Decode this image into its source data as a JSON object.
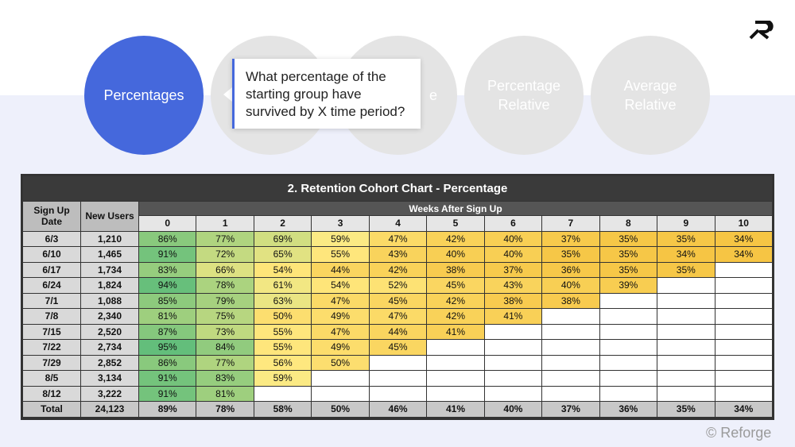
{
  "steps": [
    {
      "label": "Percentages",
      "active": true
    },
    {
      "label": "",
      "active": false
    },
    {
      "label": "e",
      "active": false
    },
    {
      "label": "Percentage\nRelative",
      "active": false
    },
    {
      "label": "Average\nRelative",
      "active": false
    }
  ],
  "tooltip": "What percentage of the\nstarting group have\nsurvived by X time period?",
  "watermark": "© Reforge",
  "colors": {
    "accent": "#4568dc",
    "green": "#63be7b",
    "yellow": "#ffeb84",
    "orange": "#f6c544"
  },
  "chart_data": {
    "type": "table",
    "title": "2. Retention Cohort Chart - Percentage",
    "row_header_label": "Sign Up Date",
    "users_header_label": "New Users",
    "weeks_header_label": "Weeks After Sign Up",
    "weeks": [
      "0",
      "1",
      "2",
      "3",
      "4",
      "5",
      "6",
      "7",
      "8",
      "9",
      "10"
    ],
    "rows": [
      {
        "date": "6/3",
        "users": "1,210",
        "values": [
          86,
          77,
          69,
          59,
          47,
          42,
          40,
          37,
          35,
          35,
          34
        ]
      },
      {
        "date": "6/10",
        "users": "1,465",
        "values": [
          91,
          72,
          65,
          55,
          43,
          40,
          40,
          35,
          35,
          34,
          34
        ]
      },
      {
        "date": "6/17",
        "users": "1,734",
        "values": [
          83,
          66,
          54,
          44,
          42,
          38,
          37,
          36,
          35,
          35
        ]
      },
      {
        "date": "6/24",
        "users": "1,824",
        "values": [
          94,
          78,
          61,
          54,
          52,
          45,
          43,
          40,
          39
        ]
      },
      {
        "date": "7/1",
        "users": "1,088",
        "values": [
          85,
          79,
          63,
          47,
          45,
          42,
          38,
          38
        ]
      },
      {
        "date": "7/8",
        "users": "2,340",
        "values": [
          81,
          75,
          50,
          49,
          47,
          42,
          41
        ]
      },
      {
        "date": "7/15",
        "users": "2,520",
        "values": [
          87,
          73,
          55,
          47,
          44,
          41
        ]
      },
      {
        "date": "7/22",
        "users": "2,734",
        "values": [
          95,
          84,
          55,
          49,
          45
        ]
      },
      {
        "date": "7/29",
        "users": "2,852",
        "values": [
          86,
          77,
          56,
          50
        ]
      },
      {
        "date": "8/5",
        "users": "3,134",
        "values": [
          91,
          83,
          59
        ]
      },
      {
        "date": "8/12",
        "users": "3,222",
        "values": [
          91,
          81
        ]
      }
    ],
    "total": {
      "label": "Total",
      "users": "24,123",
      "values": [
        89,
        78,
        58,
        50,
        46,
        41,
        40,
        37,
        36,
        35,
        34
      ]
    }
  }
}
